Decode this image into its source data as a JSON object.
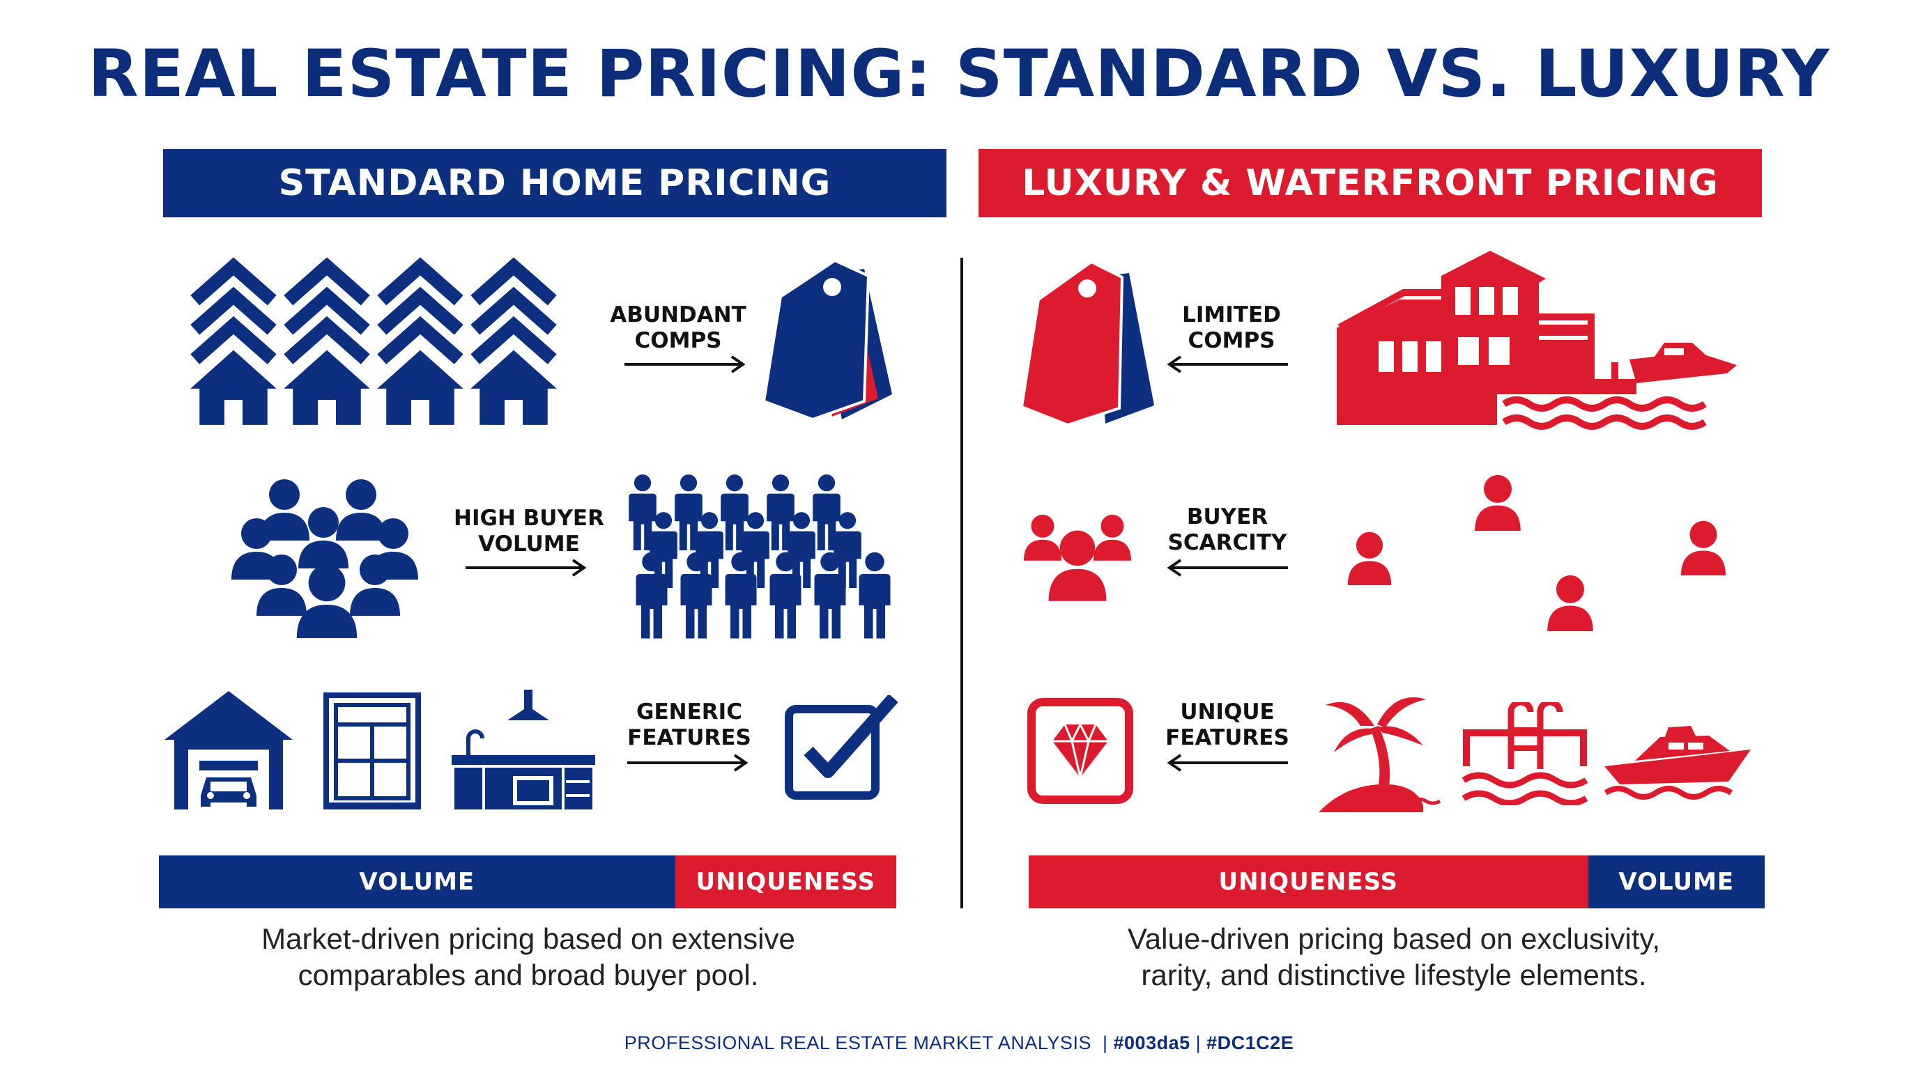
{
  "title": "REAL ESTATE PRICING: STANDARD VS. LUXURY",
  "colors": {
    "blue": "#003da5",
    "red": "#DC1C2E",
    "navy": "#0c2d7a"
  },
  "left": {
    "header": "STANDARD HOME PRICING",
    "rows": [
      {
        "label_line1": "ABUNDANT",
        "label_line2": "COMPS",
        "left_icon": "houses-grid-icon",
        "right_icon": "price-tags-icon"
      },
      {
        "label_line1": "HIGH BUYER",
        "label_line2": "VOLUME",
        "left_icon": "buyer-group-icon",
        "right_icon": "crowd-icon"
      },
      {
        "label_line1": "GENERIC",
        "label_line2": "FEATURES",
        "left_icon": "garage-window-kitchen-icons",
        "right_icon": "checkbox-icon"
      }
    ],
    "bar": {
      "primary": "VOLUME",
      "secondary": "UNIQUENESS",
      "primary_share": 0.7
    },
    "description_line1": "Market-driven pricing based on extensive",
    "description_line2": "comparables and broad buyer pool."
  },
  "right": {
    "header": "LUXURY & WATERFRONT PRICING",
    "rows": [
      {
        "label_line1": "LIMITED",
        "label_line2": "COMPS",
        "left_icon": "price-tags-icon",
        "right_icon": "waterfront-house-icon"
      },
      {
        "label_line1": "BUYER",
        "label_line2": "SCARCITY",
        "left_icon": "buyer-group-icon",
        "right_icon": "scattered-buyers-icon"
      },
      {
        "label_line1": "UNIQUE",
        "label_line2": "FEATURES",
        "left_icon": "diamond-icon",
        "right_icon": "palm-pool-yacht-icons"
      }
    ],
    "bar": {
      "primary": "UNIQUENESS",
      "secondary": "VOLUME",
      "primary_share": 0.76
    },
    "description_line1": "Value-driven pricing based on exclusivity,",
    "description_line2": "rarity, and distinctive lifestyle elements."
  },
  "footer": {
    "text": "PROFESSIONAL REAL ESTATE MARKET ANALYSIS",
    "sep1": "|",
    "color1": "#003da5",
    "sep2": "|",
    "color2": "#DC1C2E"
  }
}
